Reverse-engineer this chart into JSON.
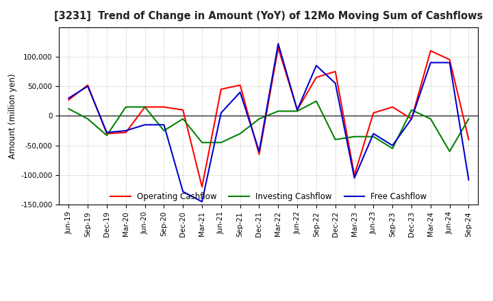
{
  "title": "[3231]  Trend of Change in Amount (YoY) of 12Mo Moving Sum of Cashflows",
  "ylabel": "Amount (million yen)",
  "background_color": "#ffffff",
  "grid_color": "#999999",
  "labels": [
    "Jun-19",
    "Sep-19",
    "Dec-19",
    "Mar-20",
    "Jun-20",
    "Sep-20",
    "Dec-20",
    "Mar-21",
    "Jun-21",
    "Sep-21",
    "Dec-21",
    "Mar-22",
    "Jun-22",
    "Sep-22",
    "Dec-22",
    "Mar-23",
    "Jun-23",
    "Sep-23",
    "Dec-23",
    "Mar-24",
    "Jun-24",
    "Sep-24"
  ],
  "operating": [
    27000,
    52000,
    -30000,
    -28000,
    15000,
    15000,
    10000,
    -120000,
    45000,
    52000,
    -65000,
    115000,
    10000,
    65000,
    75000,
    -100000,
    5000,
    15000,
    -5000,
    110000,
    95000,
    -40000
  ],
  "investing": [
    12000,
    -5000,
    -33000,
    15000,
    15000,
    -25000,
    -5000,
    -45000,
    -45000,
    -30000,
    -5000,
    8000,
    8000,
    25000,
    -40000,
    -35000,
    -35000,
    -55000,
    10000,
    -5000,
    -60000,
    -5000
  ],
  "free": [
    30000,
    50000,
    -28000,
    -25000,
    -15000,
    -15000,
    -128000,
    -145000,
    5000,
    40000,
    -60000,
    122000,
    10000,
    85000,
    55000,
    -105000,
    -30000,
    -50000,
    -5000,
    90000,
    90000,
    -108000
  ],
  "operating_color": "#ff0000",
  "investing_color": "#008000",
  "free_color": "#0000cc",
  "ylim": [
    -150000,
    150000
  ],
  "yticks": [
    -150000,
    -100000,
    -50000,
    0,
    50000,
    100000
  ],
  "legend_labels": [
    "Operating Cashflow",
    "Investing Cashflow",
    "Free Cashflow"
  ]
}
